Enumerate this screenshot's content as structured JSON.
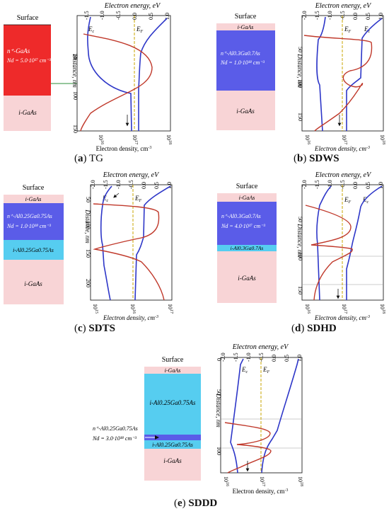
{
  "common": {
    "surface": "Surface",
    "energy_axis": "Electron energy, eV",
    "density_axis": "Electron density, cm",
    "density_axis_sup": "-3",
    "distance_axis": "Distance, nm",
    "ec": "E",
    "ec_sub": "c",
    "ef": "E",
    "ef_sub": "F"
  },
  "colors": {
    "doped_red": "#ee2a2a",
    "doped_blue": "#5a5ce8",
    "barrier_cyan": "#56cdf0",
    "gaas_pink": "#f8d4d6",
    "energy_curve": "#2d36c8",
    "density_curve": "#c0392b",
    "fermi": "#c8a400"
  },
  "panels": [
    {
      "id": "a",
      "letter": "a",
      "name": "TG",
      "energy_ticks": [
        "-1.5",
        "-1.0",
        "-0.5",
        "0.0",
        "0.5",
        "1.0"
      ],
      "distance_ticks": [
        "50",
        "100",
        "150"
      ],
      "density_ticks": [
        "10",
        "10",
        "10"
      ],
      "density_exps": [
        "16",
        "17",
        "18"
      ],
      "layers": [
        {
          "type": "doped",
          "line1": "n⁺-GaAs",
          "line2": "Nd = 5.0·10¹⁷ cm⁻³"
        },
        {
          "type": "gaas",
          "line1": "i-GaAs"
        }
      ]
    },
    {
      "id": "b",
      "letter": "b",
      "name": "SDWS",
      "energy_ticks": [
        "-2.0",
        "-1.5",
        "-1.0",
        "-0.5",
        "0.0",
        "0.5",
        "1.0"
      ],
      "distance_ticks": [
        "50",
        "100",
        "150"
      ],
      "density_ticks": [
        "10",
        "10",
        "10"
      ],
      "density_exps": [
        "16",
        "17",
        "18"
      ],
      "layers": [
        {
          "type": "gaas",
          "line1": "i-GaAs"
        },
        {
          "type": "doped",
          "line1": "n⁺-Al0.3Ga0.7As",
          "line2": "Nd = 1.0·10¹⁸ cm⁻³"
        },
        {
          "type": "gaas",
          "line1": "i-GaAs"
        }
      ]
    },
    {
      "id": "c",
      "letter": "c",
      "name": "SDTS",
      "energy_ticks": [
        "-2.0",
        "-1.5",
        "-1.0",
        "-0.5",
        "0.0",
        "0.5",
        "1.0"
      ],
      "distance_ticks": [
        "50",
        "100",
        "150",
        "200"
      ],
      "density_ticks": [
        "10",
        "10",
        "10"
      ],
      "density_exps": [
        "15",
        "16",
        "17"
      ],
      "layers": [
        {
          "type": "gaas",
          "line1": "i-GaAs"
        },
        {
          "type": "doped",
          "line1": "n⁺-Al0.25Ga0.75As",
          "line2": "Nd = 1.0·10¹⁸ cm⁻³"
        },
        {
          "type": "barrier",
          "line1": "i-Al0.25Ga0.75As"
        },
        {
          "type": "gaas",
          "line1": "i-GaAs"
        }
      ]
    },
    {
      "id": "d",
      "letter": "d",
      "name": "SDHD",
      "energy_ticks": [
        "-2.0",
        "-1.5",
        "-1.0",
        "-0.5",
        "0.0",
        "0.5",
        "1.0"
      ],
      "distance_ticks": [
        "50",
        "100",
        "150"
      ],
      "density_ticks": [
        "10",
        "10",
        "10"
      ],
      "density_exps": [
        "16",
        "17",
        "18"
      ],
      "layers": [
        {
          "type": "gaas",
          "line1": "i-GaAs"
        },
        {
          "type": "doped",
          "line1": "n⁺-Al0.3Ga0.7As",
          "line2": "Nd = 4.0·10¹⁷ cm⁻³"
        },
        {
          "type": "barrier",
          "line1": "i-Al0.3Ga0.7As"
        },
        {
          "type": "gaas",
          "line1": "i-GaAs"
        }
      ]
    },
    {
      "id": "e",
      "letter": "e",
      "name": "SDDD",
      "energy_ticks": [
        "-2.0",
        "-1.5",
        "-1.0",
        "-0.5",
        "0.0",
        "0.5",
        "1.0"
      ],
      "distance_ticks": [
        "0",
        "50",
        "100"
      ],
      "density_ticks": [
        "10",
        "10",
        "10"
      ],
      "density_exps": [
        "16",
        "17",
        "18"
      ],
      "outside_label": {
        "line1": "n⁺-Al0.25Ga0.75As",
        "line2": "Nd = 3.0·10¹⁸ cm⁻³"
      },
      "layers": [
        {
          "type": "gaas",
          "line1": "i-GaAs"
        },
        {
          "type": "barrier",
          "line1": "i-Al0.25Ga0.75As"
        },
        {
          "type": "doped",
          "line1": ""
        },
        {
          "type": "barrier",
          "line1": "i-Al0.25Ga0.75As"
        },
        {
          "type": "gaas",
          "line1": "i-GaAs"
        }
      ]
    }
  ]
}
